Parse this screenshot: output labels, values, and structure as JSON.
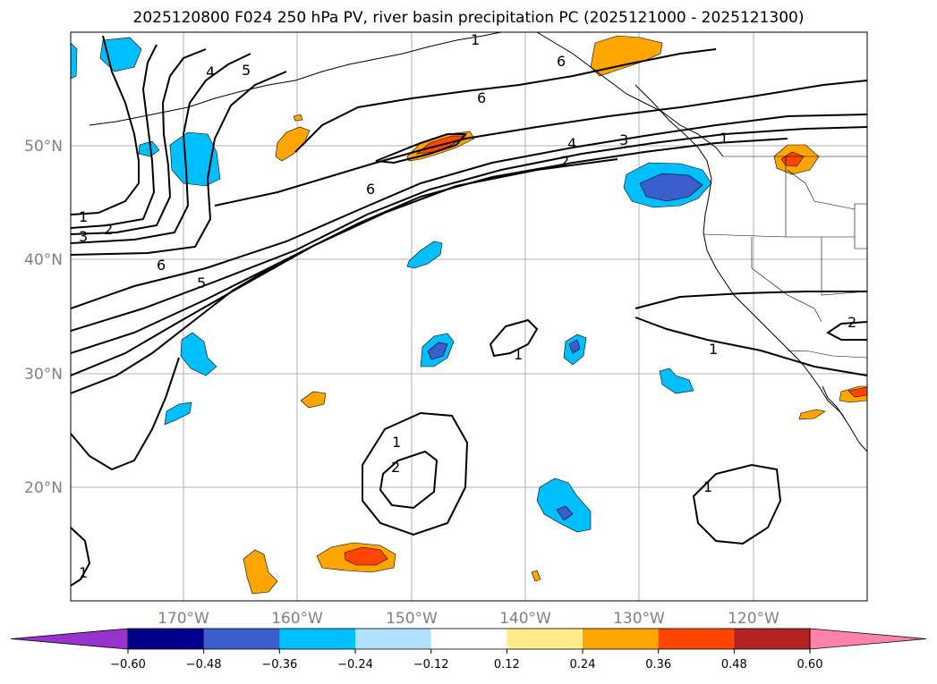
{
  "title": "2025120800 F024 250 hPa PV, river basin precipitation PC (2025121000 - 2025121300)",
  "map": {
    "lat_labels": [
      "50°N",
      "40°N",
      "30°N",
      "20°N"
    ],
    "lon_labels": [
      "170°W",
      "160°W",
      "150°W",
      "140°W",
      "130°W",
      "120°W"
    ]
  },
  "contour_labels": [
    "1",
    "3",
    "2",
    "4",
    "5",
    "6",
    "5",
    "6",
    "1",
    "6",
    "4",
    "3",
    "2",
    "1",
    "6",
    "1",
    "1",
    "2",
    "1",
    "1",
    "2",
    "1"
  ],
  "colorbar": {
    "colors": [
      "#9932cc",
      "#00008b",
      "#3a5fcd",
      "#00bfff",
      "#b0e2ff",
      "#ffffff",
      "#ffec8b",
      "#ffa500",
      "#ff4500",
      "#b22222",
      "#ff82ab"
    ],
    "tick_labels": [
      "−0.60",
      "−0.48",
      "−0.36",
      "−0.24",
      "−0.12",
      "0.12",
      "0.24",
      "0.36",
      "0.48",
      "0.60"
    ]
  }
}
